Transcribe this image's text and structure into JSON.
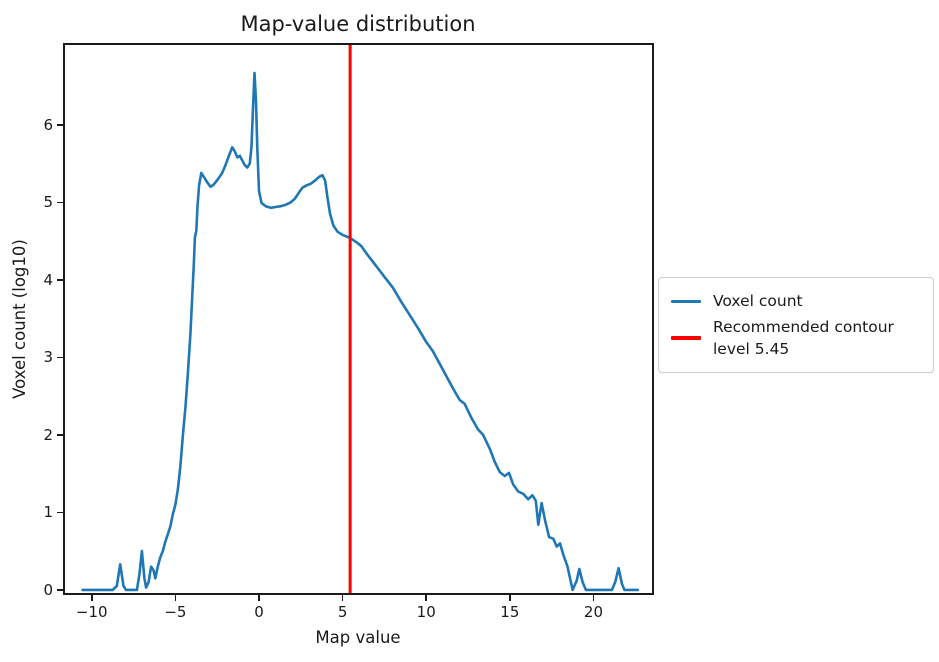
{
  "chart_data": {
    "type": "line",
    "title": "Map-value distribution",
    "xlabel": "Map value",
    "ylabel": "Voxel count (log10)",
    "xlim": [
      -11.6,
      23.5
    ],
    "ylim": [
      -0.04,
      7.03
    ],
    "grid": false,
    "xticks": {
      "values": [
        -10,
        -5,
        0,
        5,
        10,
        15,
        20
      ],
      "labels": [
        "−10",
        "−5",
        "0",
        "5",
        "10",
        "15",
        "20"
      ]
    },
    "yticks": {
      "values": [
        0,
        1,
        2,
        3,
        4,
        5,
        6
      ],
      "labels": [
        "0",
        "1",
        "2",
        "3",
        "4",
        "5",
        "6"
      ]
    },
    "legend": {
      "position": "outside-right",
      "entries": [
        {
          "label": "Voxel count",
          "color": "#1f77b4"
        },
        {
          "label": "Recommended contour\n level 5.45",
          "color": "#ff0000"
        }
      ]
    },
    "vline": {
      "x": 5.45,
      "color": "#ff0000",
      "label": "Recommended contour level 5.45"
    },
    "series": [
      {
        "name": "Voxel count",
        "color": "#1f77b4",
        "points": [
          [
            -10.55,
            0
          ],
          [
            -10.1,
            0
          ],
          [
            -9.6,
            0
          ],
          [
            -9.1,
            0
          ],
          [
            -8.75,
            0
          ],
          [
            -8.5,
            0.05
          ],
          [
            -8.3,
            0.33
          ],
          [
            -8.1,
            0.05
          ],
          [
            -7.95,
            0
          ],
          [
            -7.6,
            0
          ],
          [
            -7.3,
            0
          ],
          [
            -7.15,
            0.2
          ],
          [
            -7.0,
            0.5
          ],
          [
            -6.85,
            0.15
          ],
          [
            -6.75,
            0.03
          ],
          [
            -6.6,
            0.1
          ],
          [
            -6.45,
            0.3
          ],
          [
            -6.3,
            0.25
          ],
          [
            -6.2,
            0.15
          ],
          [
            -6.05,
            0.3
          ],
          [
            -5.9,
            0.42
          ],
          [
            -5.75,
            0.5
          ],
          [
            -5.6,
            0.62
          ],
          [
            -5.45,
            0.72
          ],
          [
            -5.3,
            0.82
          ],
          [
            -5.15,
            0.98
          ],
          [
            -5.0,
            1.1
          ],
          [
            -4.85,
            1.3
          ],
          [
            -4.7,
            1.6
          ],
          [
            -4.55,
            2.0
          ],
          [
            -4.4,
            2.35
          ],
          [
            -4.25,
            2.8
          ],
          [
            -4.1,
            3.3
          ],
          [
            -4.0,
            3.75
          ],
          [
            -3.9,
            4.2
          ],
          [
            -3.83,
            4.55
          ],
          [
            -3.75,
            4.63
          ],
          [
            -3.68,
            4.95
          ],
          [
            -3.58,
            5.22
          ],
          [
            -3.45,
            5.38
          ],
          [
            -3.3,
            5.33
          ],
          [
            -3.1,
            5.26
          ],
          [
            -2.9,
            5.2
          ],
          [
            -2.7,
            5.23
          ],
          [
            -2.45,
            5.3
          ],
          [
            -2.2,
            5.38
          ],
          [
            -2.0,
            5.48
          ],
          [
            -1.8,
            5.6
          ],
          [
            -1.6,
            5.71
          ],
          [
            -1.45,
            5.66
          ],
          [
            -1.3,
            5.58
          ],
          [
            -1.15,
            5.6
          ],
          [
            -1.0,
            5.54
          ],
          [
            -0.85,
            5.48
          ],
          [
            -0.7,
            5.45
          ],
          [
            -0.55,
            5.5
          ],
          [
            -0.45,
            5.72
          ],
          [
            -0.35,
            6.25
          ],
          [
            -0.27,
            6.67
          ],
          [
            -0.18,
            6.3
          ],
          [
            -0.1,
            5.7
          ],
          [
            0.0,
            5.15
          ],
          [
            0.15,
            4.99
          ],
          [
            0.4,
            4.95
          ],
          [
            0.7,
            4.93
          ],
          [
            1.0,
            4.94
          ],
          [
            1.3,
            4.95
          ],
          [
            1.6,
            4.97
          ],
          [
            1.9,
            5.0
          ],
          [
            2.15,
            5.05
          ],
          [
            2.4,
            5.13
          ],
          [
            2.6,
            5.19
          ],
          [
            2.85,
            5.22
          ],
          [
            3.1,
            5.24
          ],
          [
            3.35,
            5.28
          ],
          [
            3.6,
            5.33
          ],
          [
            3.8,
            5.35
          ],
          [
            3.95,
            5.28
          ],
          [
            4.1,
            5.05
          ],
          [
            4.25,
            4.85
          ],
          [
            4.45,
            4.7
          ],
          [
            4.7,
            4.62
          ],
          [
            5.0,
            4.58
          ],
          [
            5.45,
            4.54
          ],
          [
            5.8,
            4.49
          ],
          [
            6.1,
            4.44
          ],
          [
            6.5,
            4.32
          ],
          [
            7.0,
            4.18
          ],
          [
            7.5,
            4.04
          ],
          [
            8.0,
            3.9
          ],
          [
            8.5,
            3.72
          ],
          [
            9.0,
            3.55
          ],
          [
            9.5,
            3.38
          ],
          [
            10.0,
            3.2
          ],
          [
            10.4,
            3.08
          ],
          [
            10.8,
            2.92
          ],
          [
            11.2,
            2.76
          ],
          [
            11.6,
            2.6
          ],
          [
            12.0,
            2.45
          ],
          [
            12.3,
            2.4
          ],
          [
            12.7,
            2.22
          ],
          [
            13.1,
            2.07
          ],
          [
            13.4,
            2.0
          ],
          [
            13.8,
            1.82
          ],
          [
            14.1,
            1.65
          ],
          [
            14.4,
            1.52
          ],
          [
            14.7,
            1.47
          ],
          [
            14.95,
            1.51
          ],
          [
            15.2,
            1.36
          ],
          [
            15.5,
            1.27
          ],
          [
            15.8,
            1.24
          ],
          [
            16.1,
            1.17
          ],
          [
            16.35,
            1.22
          ],
          [
            16.55,
            1.15
          ],
          [
            16.7,
            0.84
          ],
          [
            16.9,
            1.12
          ],
          [
            17.1,
            0.9
          ],
          [
            17.35,
            0.68
          ],
          [
            17.6,
            0.66
          ],
          [
            17.8,
            0.56
          ],
          [
            18.0,
            0.6
          ],
          [
            18.2,
            0.45
          ],
          [
            18.45,
            0.3
          ],
          [
            18.75,
            0
          ],
          [
            19.0,
            0.12
          ],
          [
            19.15,
            0.27
          ],
          [
            19.35,
            0.1
          ],
          [
            19.55,
            0
          ],
          [
            20.0,
            0
          ],
          [
            20.6,
            0
          ],
          [
            21.1,
            0
          ],
          [
            21.3,
            0.1
          ],
          [
            21.5,
            0.28
          ],
          [
            21.7,
            0.08
          ],
          [
            21.85,
            0
          ],
          [
            22.3,
            0
          ],
          [
            22.65,
            0
          ]
        ]
      }
    ]
  }
}
